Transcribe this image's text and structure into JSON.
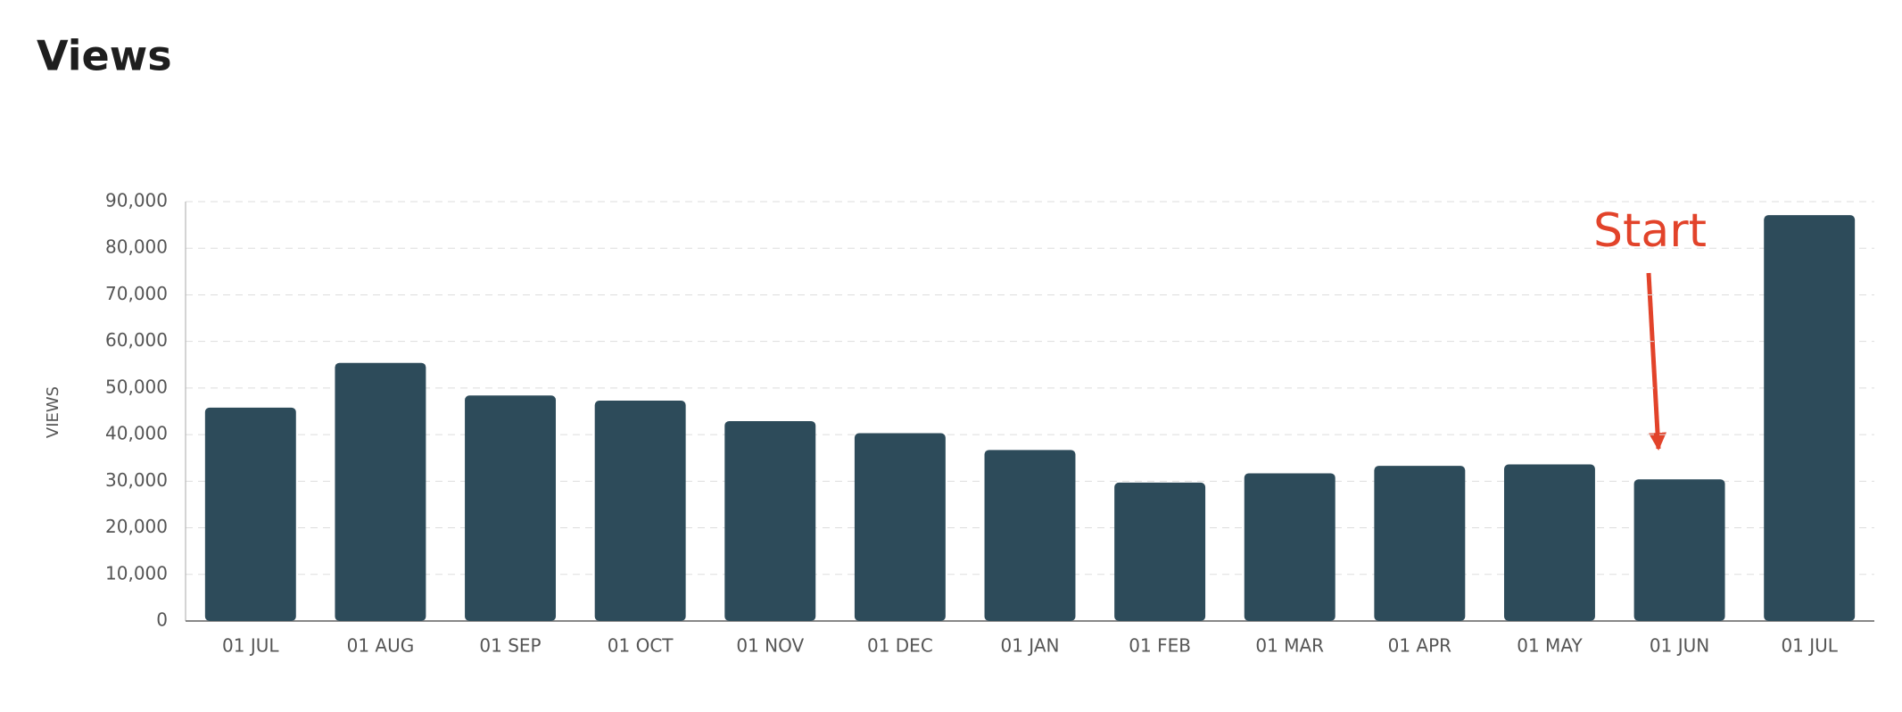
{
  "chart_data": {
    "type": "bar",
    "title": "Views",
    "y_label": "VIEWS",
    "annotation": "Start",
    "categories": [
      "01 JUL",
      "01 AUG",
      "01 SEP",
      "01 OCT",
      "01 NOV",
      "01 DEC",
      "01 JAN",
      "01 FEB",
      "01 MAR",
      "01 APR",
      "01 MAY",
      "01 JUN",
      "01 JUL"
    ],
    "values": [
      45800,
      55400,
      48400,
      47300,
      42900,
      40300,
      36700,
      29700,
      31700,
      33300,
      33600,
      30400,
      87100
    ],
    "color": "#2d4b5a",
    "ylim": [
      0,
      90000
    ],
    "yticks": [
      0,
      {
        "value": 10000,
        "label": "10,000"
      },
      {
        "value": 20000,
        "label": "20,000"
      },
      {
        "value": 30000,
        "label": "30,000"
      },
      {
        "value": 40000,
        "label": "40,000"
      },
      {
        "value": 50000,
        "label": "50,000"
      },
      {
        "value": 60000,
        "label": "60,000"
      },
      {
        "value": 70000,
        "label": "70,000"
      },
      {
        "value": 80000,
        "label": "80,000"
      },
      {
        "value": 90000,
        "label": "90,000"
      }
    ],
    "grid": true
  }
}
